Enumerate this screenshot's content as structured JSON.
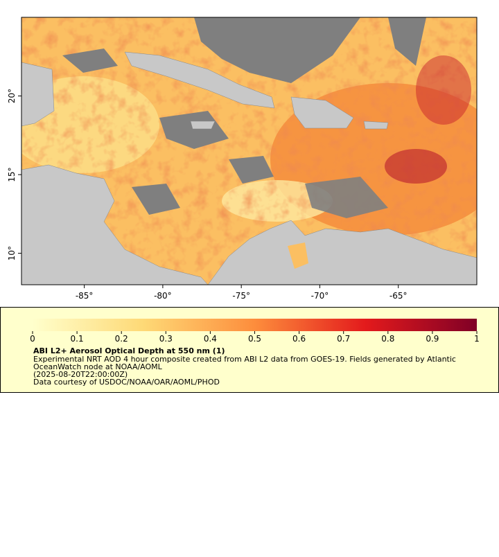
{
  "map": {
    "xlim": [
      -89,
      -60
    ],
    "ylim": [
      8,
      25
    ],
    "xticks": [
      {
        "value": -85,
        "label": "-85°"
      },
      {
        "value": -80,
        "label": "-80°"
      },
      {
        "value": -75,
        "label": "-75°"
      },
      {
        "value": -70,
        "label": "-70°"
      },
      {
        "value": -65,
        "label": "-65°"
      }
    ],
    "yticks": [
      {
        "value": 10,
        "label": "10°"
      },
      {
        "value": 15,
        "label": "15°"
      },
      {
        "value": 20,
        "label": "20°"
      }
    ]
  },
  "colorbar": {
    "lim": [
      0,
      1
    ],
    "ticks": [
      0,
      0.1,
      0.2,
      0.3,
      0.4,
      0.5,
      0.6,
      0.7,
      0.8,
      0.9,
      1
    ],
    "colors": [
      "#ffffcc",
      "#fed976",
      "#fd8d3c",
      "#e31a1c",
      "#800026"
    ]
  },
  "legend": {
    "title": "ABI L2+ Aerosol Optical Depth at 550 nm (1)",
    "lines": [
      "Experimental NRT AOD 4 hour composite created from ABI L2 data from GOES-19. Fields generated by Atlantic",
      "OceanWatch node at NOAA/AOML",
      "(2025-08-20T22:00:00Z)",
      "Data courtesy of USDOC/NOAA/OAR/AOML/PHOD"
    ]
  }
}
